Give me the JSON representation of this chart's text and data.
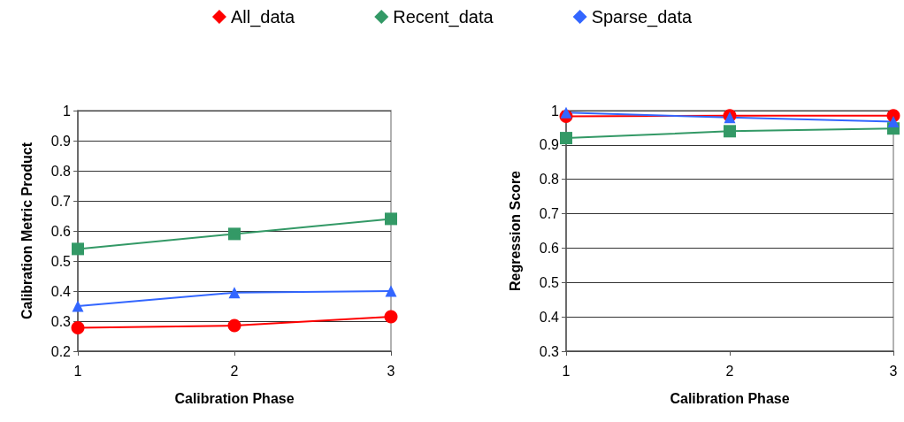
{
  "chart_data": [
    {
      "type": "line",
      "xlabel": "Calibration Phase",
      "ylabel": "Calibration Metric Product",
      "x": [
        1,
        2,
        3
      ],
      "xlim": [
        1,
        3
      ],
      "xticks": [
        1,
        2,
        3
      ],
      "ylim": [
        0.2,
        1
      ],
      "yticks": [
        0.2,
        0.3,
        0.4,
        0.5,
        0.6,
        0.7,
        0.8,
        0.9,
        1
      ],
      "grid": "y",
      "legend": "top",
      "series": [
        {
          "name": "All_data",
          "color": "#ff0000",
          "marker": "circle",
          "values": [
            0.278,
            0.285,
            0.315
          ]
        },
        {
          "name": "Recent_data",
          "color": "#339966",
          "marker": "square",
          "values": [
            0.54,
            0.59,
            0.64
          ]
        },
        {
          "name": "Sparse_data",
          "color": "#3366ff",
          "marker": "triangle",
          "values": [
            0.35,
            0.395,
            0.4
          ]
        }
      ]
    },
    {
      "type": "line",
      "xlabel": "Calibration Phase",
      "ylabel": "Regression Score",
      "x": [
        1,
        2,
        3
      ],
      "xlim": [
        1,
        3
      ],
      "xticks": [
        1,
        2,
        3
      ],
      "ylim": [
        0.3,
        1
      ],
      "yticks": [
        0.3,
        0.4,
        0.5,
        0.6,
        0.7,
        0.8,
        0.9,
        1
      ],
      "grid": "y",
      "series": [
        {
          "color": "#ff0000",
          "marker": "circle",
          "values": [
            0.983,
            0.985,
            0.985
          ]
        },
        {
          "color": "#339966",
          "marker": "square",
          "values": [
            0.92,
            0.94,
            0.948
          ]
        },
        {
          "color": "#3366ff",
          "marker": "triangle",
          "values": [
            0.994,
            0.98,
            0.968
          ]
        }
      ]
    }
  ]
}
